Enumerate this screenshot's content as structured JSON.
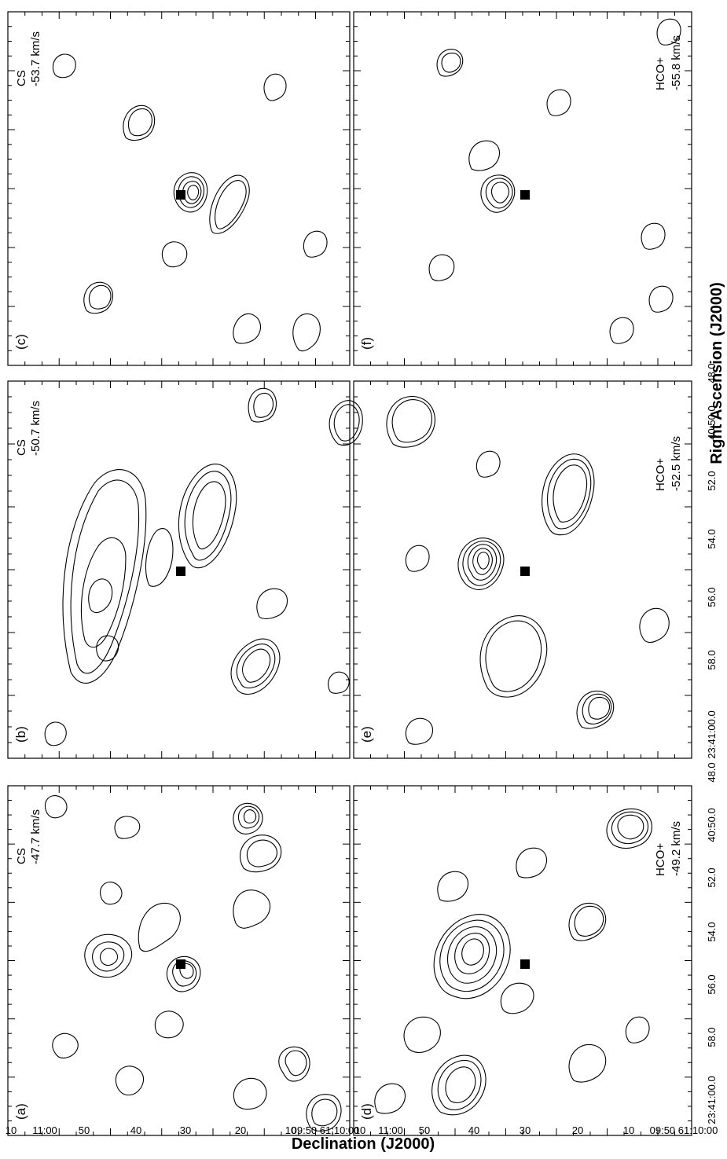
{
  "figure": {
    "xlabel": "Right Ascension (J2000)",
    "ylabel": "Declination (J2000)",
    "ra_ticks_left": [
      "23:41:00.0",
      "58.0",
      "56.0",
      "54.0",
      "52.0",
      "40:50.0",
      "48.0"
    ],
    "ra_ticks_right": [
      "23:41:00.0",
      "58.0",
      "56.0",
      "54.0",
      "52.0",
      "40:50.0",
      "48.0"
    ],
    "dec_ticks_top": [
      "09:50 61:10:00",
      "10",
      "20",
      "30",
      "40",
      "50",
      "11:00",
      "10"
    ],
    "dec_ticks_bottom": [
      "09:50 61:10:00",
      "10",
      "20",
      "30",
      "40",
      "50",
      "11:00",
      "10"
    ],
    "panels": [
      {
        "id": "a",
        "label": "(a)",
        "molecule": "CS",
        "velocity": "-47.7 km/s"
      },
      {
        "id": "b",
        "label": "(b)",
        "molecule": "CS",
        "velocity": "-50.7 km/s"
      },
      {
        "id": "c",
        "label": "(c)",
        "molecule": "CS",
        "velocity": "-53.7 km/s"
      },
      {
        "id": "d",
        "label": "(d)",
        "molecule": "HCO+",
        "velocity": "-49.2 km/s"
      },
      {
        "id": "e",
        "label": "(e)",
        "molecule": "HCO+",
        "velocity": "-52.5 km/s"
      },
      {
        "id": "f",
        "label": "(f)",
        "molecule": "HCO+",
        "velocity": "-55.8 km/s"
      }
    ]
  }
}
